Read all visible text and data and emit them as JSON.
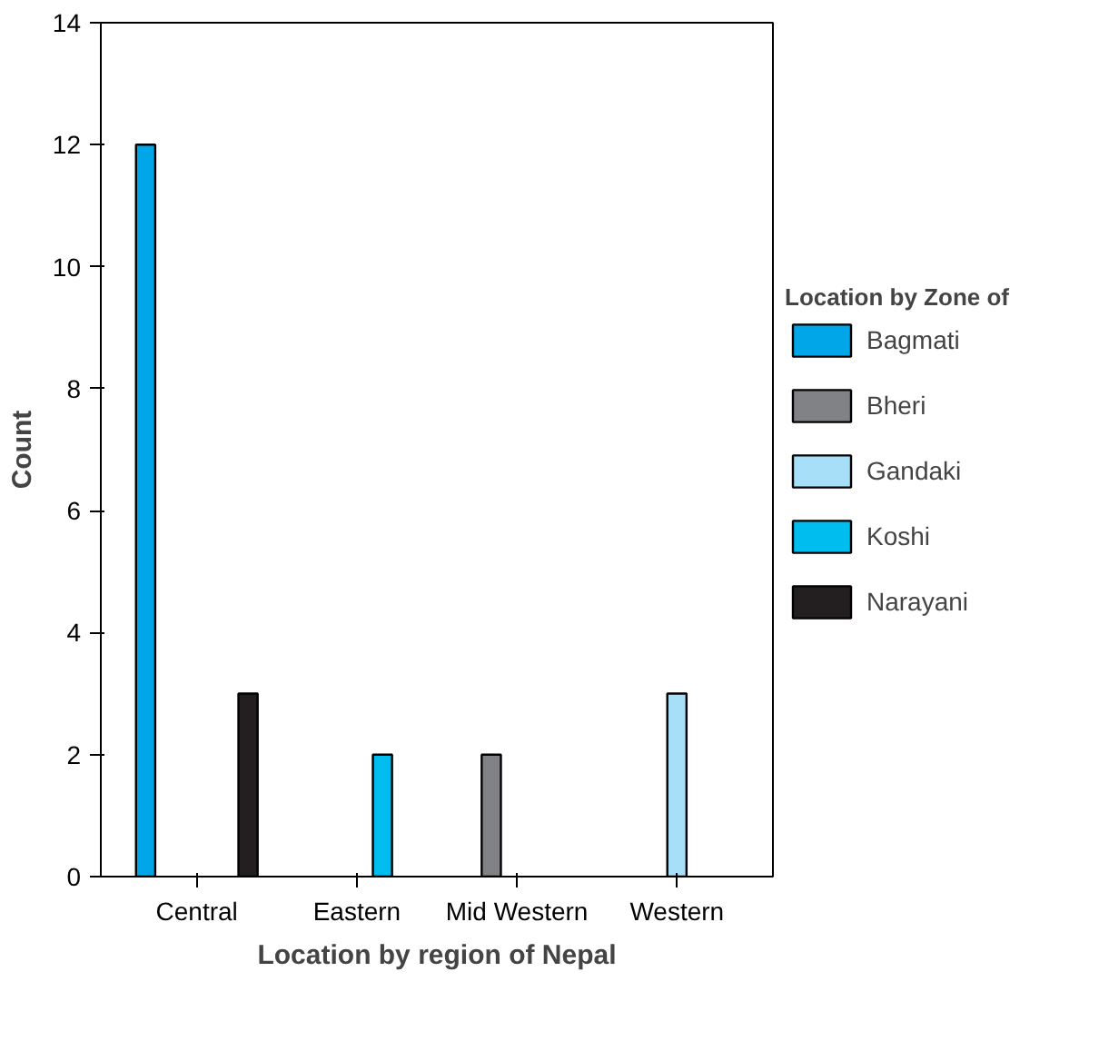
{
  "chart_data": {
    "type": "bar",
    "xlabel": "Location by region of Nepal",
    "ylabel": "Count",
    "legend_title": "Location by Zone of",
    "categories": [
      "Central",
      "Eastern",
      "Mid Western",
      "Western"
    ],
    "series": [
      {
        "name": "Bagmati",
        "color": "#00a6e8",
        "values": [
          12,
          null,
          null,
          null
        ]
      },
      {
        "name": "Bheri",
        "color": "#808285",
        "values": [
          null,
          null,
          2,
          null
        ]
      },
      {
        "name": "Gandaki",
        "color": "#a8dff8",
        "values": [
          null,
          null,
          null,
          3
        ]
      },
      {
        "name": "Koshi",
        "color": "#00bdf0",
        "values": [
          null,
          2,
          null,
          null
        ]
      },
      {
        "name": "Narayani",
        "color": "#231f20",
        "values": [
          3,
          null,
          null,
          null
        ]
      }
    ],
    "ylim": [
      0,
      14
    ],
    "yticks": [
      0,
      2,
      4,
      6,
      8,
      10,
      12,
      14
    ],
    "grid": false,
    "legend": "right"
  }
}
